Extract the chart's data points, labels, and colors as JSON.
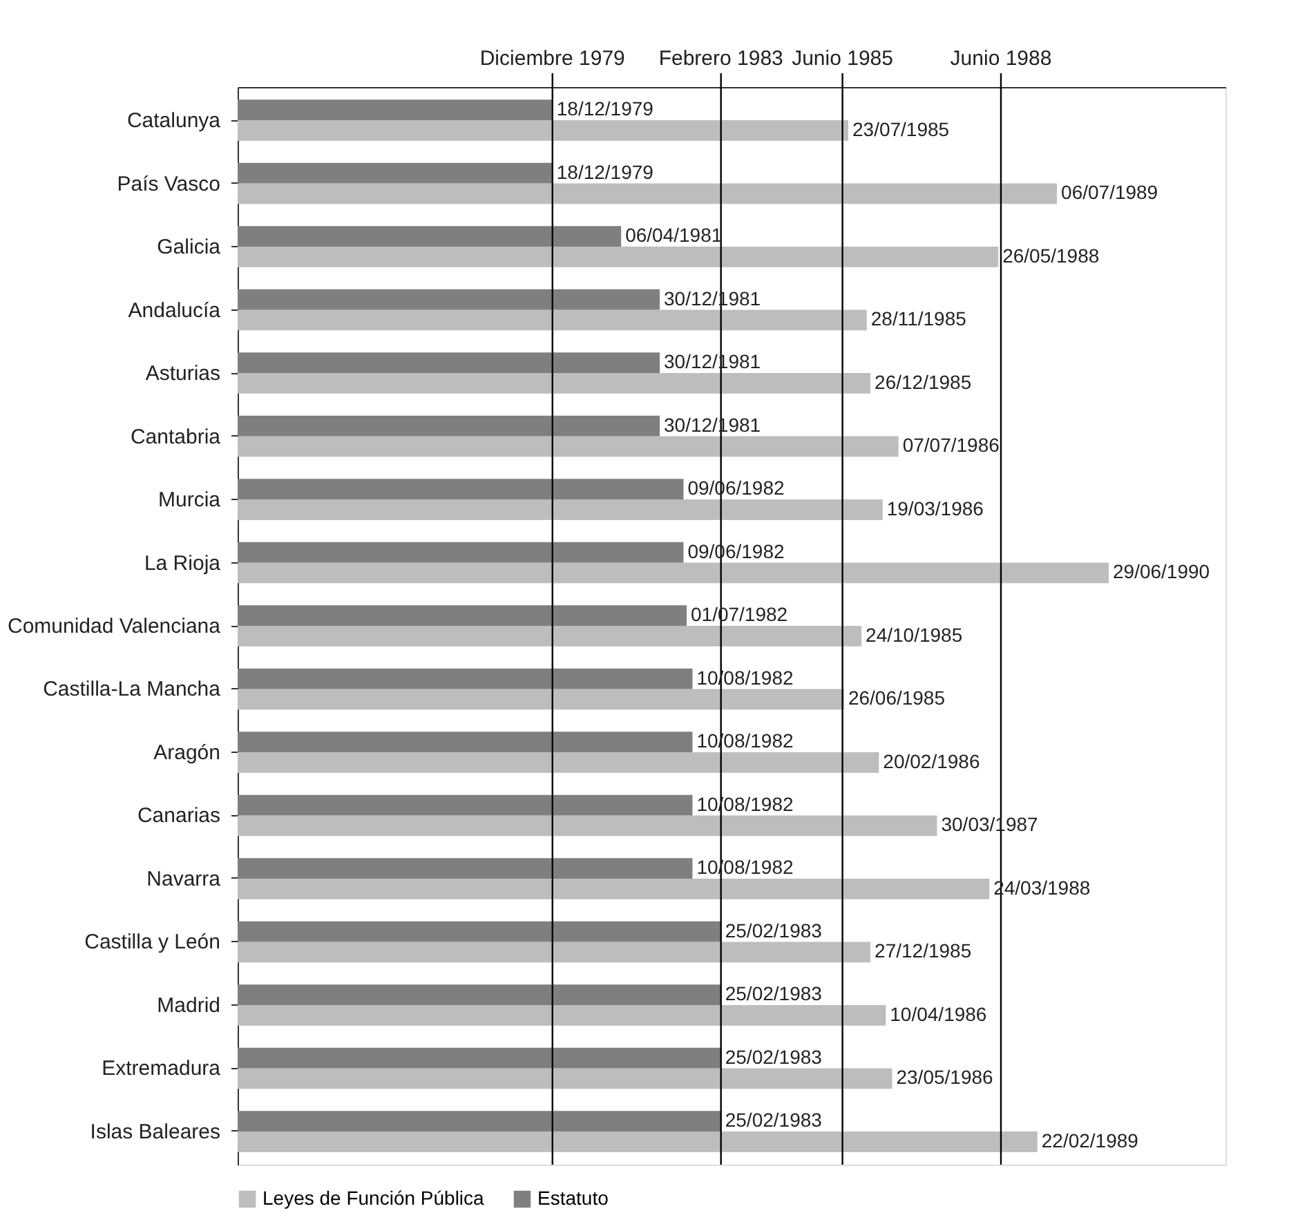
{
  "chart_data": {
    "type": "bar",
    "orientation": "horizontal",
    "categories": [
      "Catalunya",
      "País Vasco",
      "Galicia",
      "Andalucía",
      "Asturias",
      "Cantabria",
      "Murcia",
      "La Rioja",
      "Comunidad Valenciana",
      "Castilla-La Mancha",
      "Aragón",
      "Canarias",
      "Navarra",
      "Castilla  y León",
      "Madrid",
      "Extremadura",
      "Islas Baleares"
    ],
    "series": [
      {
        "name": "Leyes de Función Pública",
        "color": "#bdbdbd",
        "values": [
          1985.56,
          1989.51,
          1988.4,
          1985.91,
          1985.98,
          1986.51,
          1986.21,
          1990.49,
          1985.81,
          1985.48,
          1986.14,
          1987.24,
          1988.23,
          1985.98,
          1986.27,
          1986.39,
          1989.14
        ],
        "value_labels": [
          "23/07/1985",
          "06/07/1989",
          "26/05/1988",
          "28/11/1985",
          "26/12/1985",
          "07/07/1986",
          "19/03/1986",
          "29/06/1990",
          "24/10/1985",
          "26/06/1985",
          "20/02/1986",
          "30/03/1987",
          "24/03/1988",
          "27/12/1985",
          "10/04/1986",
          "23/05/1986",
          "22/02/1989"
        ]
      },
      {
        "name": "Estatuto",
        "color": "#7f7f7f",
        "values": [
          1979.96,
          1979.96,
          1981.26,
          1981.99,
          1981.99,
          1981.99,
          1982.44,
          1982.44,
          1982.5,
          1982.61,
          1982.61,
          1982.61,
          1982.61,
          1983.15,
          1983.15,
          1983.15,
          1983.15
        ],
        "value_labels": [
          "18/12/1979",
          "18/12/1979",
          "06/04/1981",
          "30/12/1981",
          "30/12/1981",
          "30/12/1981",
          "09/06/1982",
          "09/06/1982",
          "01/07/1982",
          "10/08/1982",
          "10/08/1982",
          "10/08/1982",
          "10/08/1982",
          "25/02/1983",
          "25/02/1983",
          "25/02/1983",
          "25/02/1983"
        ]
      }
    ],
    "xlim": [
      1974.0,
      1992.7
    ],
    "ref_lines": [
      {
        "axis": "x",
        "value": 1979.96,
        "label": "Diciembre 1979",
        "color": "#000000"
      },
      {
        "axis": "x",
        "value": 1983.15,
        "label": "Febrero 1983",
        "color": "#000000"
      },
      {
        "axis": "x",
        "value": 1985.45,
        "label": "Junio 1985",
        "color": "#000000"
      },
      {
        "axis": "x",
        "value": 1988.45,
        "label": "Junio 1988",
        "color": "#000000"
      }
    ],
    "legend": "bottom"
  }
}
